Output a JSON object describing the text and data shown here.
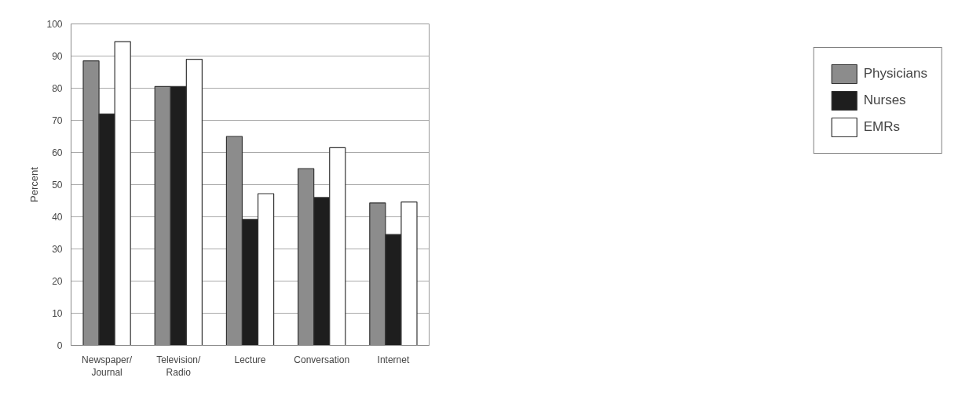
{
  "chart_data": {
    "type": "bar",
    "ylabel": "Percent",
    "categories": [
      "Newspaper/\nJournal",
      "Television/\nRadio",
      "Lecture",
      "Conversation",
      "Internet"
    ],
    "series": [
      {
        "name": "Physicians",
        "color": "#8c8c8c",
        "values": [
          88.5,
          80.5,
          65,
          55,
          44.3
        ]
      },
      {
        "name": "Nurses",
        "color": "#1e1e1e",
        "values": [
          72,
          80.5,
          39.2,
          46,
          34.5
        ]
      },
      {
        "name": "EMRs",
        "color": "#ffffff",
        "values": [
          94.5,
          89,
          47.2,
          61.5,
          44.6
        ]
      }
    ],
    "ylim": [
      0,
      100
    ],
    "yticks": [
      0,
      10,
      20,
      30,
      40,
      50,
      60,
      70,
      80,
      90,
      100
    ],
    "grid": "y",
    "legend": "right"
  }
}
